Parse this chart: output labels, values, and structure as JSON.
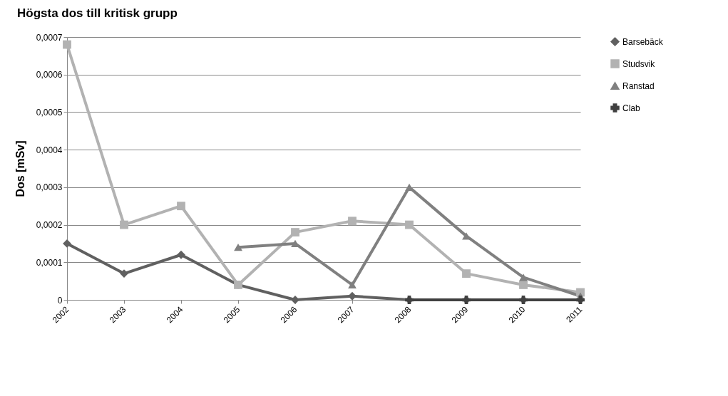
{
  "chart_data": {
    "type": "line",
    "title": "Högsta dos till kritisk grupp",
    "ylabel": "Dos [mSv]",
    "categories": [
      "2002",
      "2003",
      "2004",
      "2005",
      "2006",
      "2007",
      "2008",
      "2009",
      "2010",
      "2011"
    ],
    "series": [
      {
        "name": "Barsebäck",
        "color": "#606060",
        "marker": "diamond",
        "values": [
          0.00015,
          7e-05,
          0.00012,
          4e-05,
          0,
          1e-05,
          0,
          0,
          0,
          0
        ]
      },
      {
        "name": "Studsvik",
        "color": "#b2b2b2",
        "marker": "square",
        "values": [
          0.00068,
          0.0002,
          0.00025,
          4e-05,
          0.00018,
          0.00021,
          0.0002,
          7e-05,
          4e-05,
          2e-05
        ]
      },
      {
        "name": "Ranstad",
        "color": "#808080",
        "marker": "triangle",
        "values": [
          null,
          null,
          null,
          0.00014,
          0.00015,
          4e-05,
          0.0003,
          0.00017,
          6e-05,
          1e-05
        ]
      },
      {
        "name": "Clab",
        "color": "#404040",
        "marker": "cross",
        "values": [
          null,
          null,
          null,
          null,
          null,
          null,
          0,
          0,
          0,
          0
        ]
      }
    ],
    "ylim": [
      0,
      0.0007
    ],
    "yticks": [
      {
        "value": 0,
        "label": "0"
      },
      {
        "value": 0.0001,
        "label": "0,0001"
      },
      {
        "value": 0.0002,
        "label": "0,0002"
      },
      {
        "value": 0.0003,
        "label": "0,0003"
      },
      {
        "value": 0.0004,
        "label": "0,0004"
      },
      {
        "value": 0.0005,
        "label": "0,0005"
      },
      {
        "value": 0.0006,
        "label": "0,0006"
      },
      {
        "value": 0.0007,
        "label": "0,0007"
      }
    ],
    "grid": "y",
    "legend": "right",
    "line_style": "solid"
  }
}
